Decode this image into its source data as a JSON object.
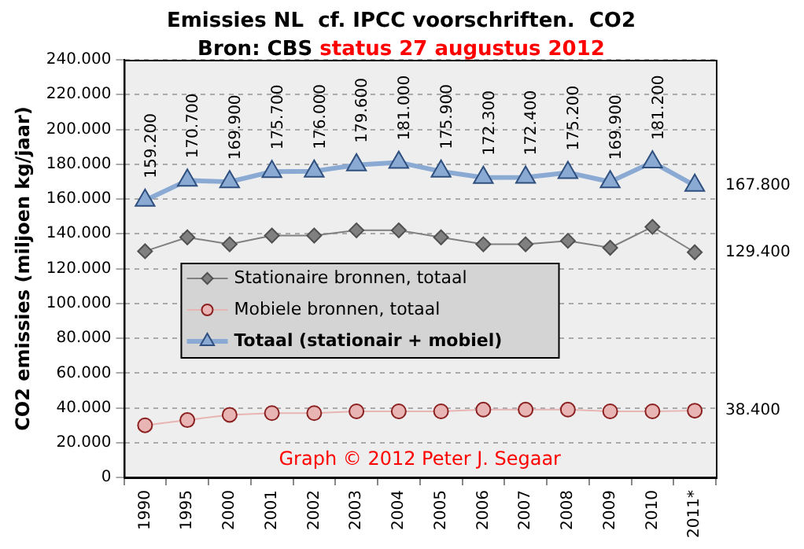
{
  "chart_data": {
    "type": "line",
    "title": "Emissies NL  cf. IPCC voorschriften.  CO2",
    "subtitle": "Bron: CBS",
    "ylabel": "CO2 emissies (miljoen kg/jaar)",
    "annotations": [
      "status 27 augustus 2012",
      "Graph © 2012 Peter J. Segaar"
    ],
    "categories": [
      "1990",
      "1995",
      "2000",
      "2001",
      "2002",
      "2003",
      "2004",
      "2005",
      "2006",
      "2007",
      "2008",
      "2009",
      "2010",
      "2011*"
    ],
    "series": [
      {
        "name": "Stationaire bronnen, totaal",
        "color": "#808080",
        "marker": "diamond",
        "values": [
          130000,
          138000,
          134000,
          139000,
          139000,
          142000,
          142000,
          138000,
          134000,
          134000,
          136000,
          132000,
          144000,
          129400
        ],
        "value_labels": [
          null,
          null,
          null,
          null,
          null,
          null,
          null,
          null,
          null,
          null,
          null,
          null,
          null,
          "129.400"
        ]
      },
      {
        "name": "Mobiele bronnen, totaal",
        "color": "#e8b4b4",
        "marker": "circle",
        "values": [
          30000,
          33000,
          36000,
          37000,
          37000,
          38000,
          38000,
          38000,
          39000,
          39000,
          39000,
          38000,
          38000,
          38400
        ],
        "value_labels": [
          null,
          null,
          null,
          null,
          null,
          null,
          null,
          null,
          null,
          null,
          null,
          null,
          null,
          "38.400"
        ]
      },
      {
        "name": "Totaal (stationair + mobiel)",
        "color": "#8aaad4",
        "marker": "triangle",
        "values": [
          159200,
          170700,
          169900,
          175700,
          176000,
          179600,
          181000,
          175900,
          172300,
          172400,
          175200,
          169900,
          181200,
          167800
        ],
        "value_labels": [
          "159.200",
          "170.700",
          "169.900",
          "175.700",
          "176.000",
          "179.600",
          "181.000",
          "175.900",
          "172.300",
          "172.400",
          "175.200",
          "169.900",
          "181.200",
          "167.800"
        ]
      }
    ],
    "ylim": [
      0,
      240000
    ],
    "yticks": [
      {
        "value": 0,
        "label": "0"
      },
      {
        "value": 20000,
        "label": "20.000"
      },
      {
        "value": 40000,
        "label": "40.000"
      },
      {
        "value": 60000,
        "label": "60.000"
      },
      {
        "value": 80000,
        "label": "80.000"
      },
      {
        "value": 100000,
        "label": "100.000"
      },
      {
        "value": 120000,
        "label": "120.000"
      },
      {
        "value": 140000,
        "label": "140.000"
      },
      {
        "value": 160000,
        "label": "160.000"
      },
      {
        "value": 180000,
        "label": "180.000"
      },
      {
        "value": 200000,
        "label": "200.000"
      },
      {
        "value": 220000,
        "label": "220.000"
      },
      {
        "value": 240000,
        "label": "240.000"
      }
    ],
    "grid": "y",
    "legend": "left"
  }
}
